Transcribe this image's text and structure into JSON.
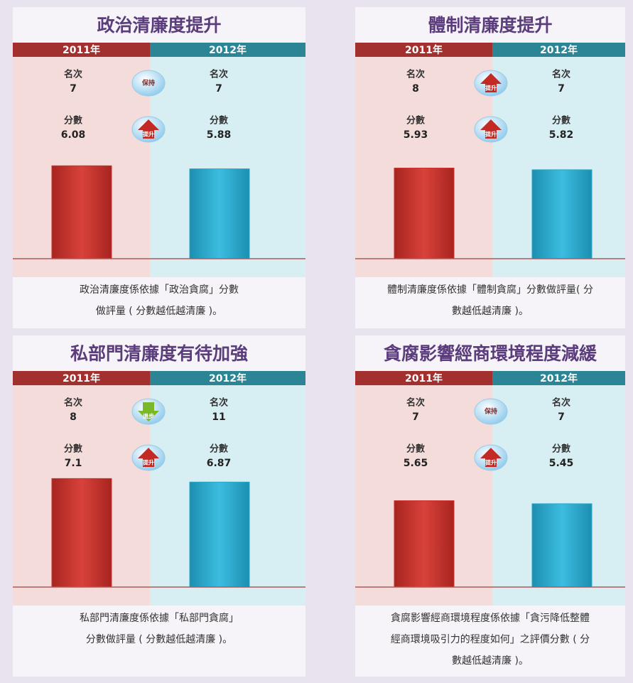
{
  "chart_data": [
    {
      "type": "bar",
      "title": "政治清廉度提升",
      "categories": [
        "2011年",
        "2012年"
      ],
      "rank_label": "名次",
      "ranks": [
        7,
        7
      ],
      "rank_change": "保持",
      "score_label": "分數",
      "values": [
        6.08,
        5.88
      ],
      "score_change": "提升",
      "colors": [
        "#c8312d",
        "#2aa7c9"
      ],
      "ylim": [
        0,
        10
      ],
      "description": [
        "政治清廉度係依據「政治貪腐」分數",
        "做評量 ( 分數越低越清廉 )。"
      ]
    },
    {
      "type": "bar",
      "title": "體制清廉度提升",
      "categories": [
        "2011年",
        "2012年"
      ],
      "rank_label": "名次",
      "ranks": [
        8,
        7
      ],
      "rank_change": "提升",
      "score_label": "分數",
      "values": [
        5.93,
        5.82
      ],
      "score_change": "提升",
      "colors": [
        "#c8312d",
        "#2aa7c9"
      ],
      "ylim": [
        0,
        10
      ],
      "description": [
        "體制清廉度係依據「體制貪腐」分數做評量( 分",
        "數越低越清廉 )。"
      ]
    },
    {
      "type": "bar",
      "title": "私部門清廉度有待加強",
      "categories": [
        "2011年",
        "2012年"
      ],
      "rank_label": "名次",
      "ranks": [
        8,
        11
      ],
      "rank_change": "退步",
      "score_label": "分數",
      "values": [
        7.1,
        6.87
      ],
      "score_change": "提升",
      "colors": [
        "#c8312d",
        "#2aa7c9"
      ],
      "ylim": [
        0,
        10
      ],
      "description": [
        "私部門清廉度係依據「私部門貪腐」",
        "分數做評量 ( 分數越低越清廉 )。"
      ]
    },
    {
      "type": "bar",
      "title": "貪腐影響經商環境程度減緩",
      "categories": [
        "2011年",
        "2012年"
      ],
      "rank_label": "名次",
      "ranks": [
        7,
        7
      ],
      "rank_change": "保持",
      "score_label": "分數",
      "values": [
        5.65,
        5.45
      ],
      "score_change": "提升",
      "colors": [
        "#c8312d",
        "#2aa7c9"
      ],
      "ylim": [
        0,
        10
      ],
      "description": [
        "貪腐影響經商環境程度係依據「貪污降低整體",
        "經商環境吸引力的程度如何」之評價分數 ( 分",
        "數越低越清廉 )。"
      ]
    }
  ]
}
